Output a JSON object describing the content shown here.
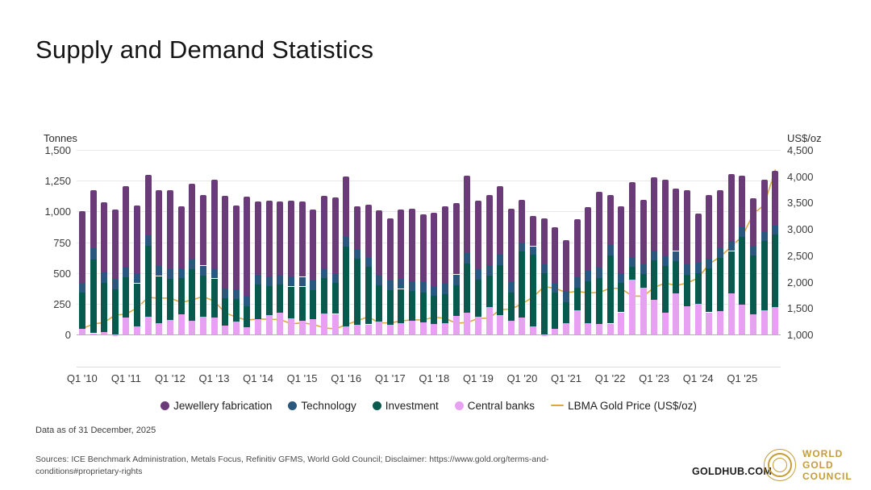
{
  "page": {
    "title": "Supply and Demand Statistics"
  },
  "footer": {
    "data_as_of": "Data as of 31 December, 2025",
    "sources": "Sources: ICE Benchmark Administration, Metals Focus, Refinitiv GFMS, World Gold Council; Disclaimer: https://www.gold.org/terms-and-conditions#proprietary-rights"
  },
  "branding": {
    "goldhub": "GOLDHUB.COM",
    "wgc_lines": {
      "0": "WORLD",
      "1": "GOLD",
      "2": "COUNCIL"
    }
  },
  "chart_data": {
    "type": "bar",
    "subtype": "stacked-bars-with-line",
    "title": "Supply and Demand Statistics",
    "x_tick_labels": [
      "Q1 '10",
      "Q1 '11",
      "Q1 '12",
      "Q1 '13",
      "Q1 '14",
      "Q1 '15",
      "Q1 '16",
      "Q1 '17",
      "Q1 '18",
      "Q1 '19",
      "Q1 '20",
      "Q1 '21",
      "Q1 '22",
      "Q1 '23",
      "Q1 '24",
      "Q1 '25"
    ],
    "quarters_per_tick": 4,
    "left_axis": {
      "title": "Tonnes",
      "ticks": [
        0,
        250,
        500,
        750,
        1000,
        1250,
        1500
      ],
      "labels": [
        "0",
        "250",
        "500",
        "750",
        "1,000",
        "1,250",
        "1,500"
      ],
      "ylim": [
        -260,
        1500
      ]
    },
    "right_axis": {
      "title": "US$/oz",
      "ticks": [
        1000,
        1500,
        2000,
        2500,
        3000,
        3500,
        4000,
        4500
      ],
      "labels": [
        "1,000",
        "1,500",
        "2,000",
        "2,500",
        "3,000",
        "3,500",
        "4,000",
        "4,500"
      ],
      "ylim": [
        1000,
        4500
      ]
    },
    "stack_order": [
      "central_banks",
      "investment",
      "technology",
      "jewellery"
    ],
    "series": [
      {
        "id": "jewellery",
        "name": "Jewellery fabrication",
        "color": "#6b3a78",
        "values": [
          580,
          477,
          573,
          560,
          654,
          550,
          494,
          611,
          638,
          503,
          611,
          575,
          725,
          749,
          682,
          808,
          595,
          613,
          596,
          620,
          612,
          575,
          590,
          621,
          495,
          356,
          426,
          531,
          504,
          565,
          587,
          550,
          596,
          632,
          577,
          631,
          562,
          573,
          556,
          596,
          347,
          243,
          370,
          450,
          419,
          477,
          520,
          615,
          410,
          544,
          610,
          526,
          597,
          619,
          507,
          607,
          404,
          517,
          472,
          543,
          414,
          388,
          423,
          442
        ]
      },
      {
        "id": "technology",
        "name": "Technology",
        "color": "#2a577d",
        "values": [
          80,
          88,
          85,
          85,
          84,
          84,
          86,
          84,
          82,
          80,
          82,
          80,
          80,
          80,
          80,
          81,
          79,
          79,
          79,
          80,
          78,
          78,
          77,
          77,
          75,
          76,
          77,
          79,
          79,
          80,
          82,
          83,
          82,
          83,
          85,
          84,
          82,
          83,
          83,
          84,
          73,
          67,
          77,
          80,
          81,
          83,
          84,
          86,
          82,
          81,
          80,
          79,
          79,
          81,
          81,
          81,
          81,
          83,
          83,
          84,
          81,
          79,
          77,
          78
        ]
      },
      {
        "id": "investment",
        "name": "Investment",
        "color": "#085a4e",
        "values": [
          295,
          600,
          395,
          370,
          330,
          350,
          575,
          380,
          335,
          295,
          420,
          335,
          320,
          225,
          185,
          170,
          282,
          235,
          230,
          257,
          278,
          235,
          290,
          250,
          650,
          535,
          470,
          295,
          285,
          280,
          240,
          245,
          225,
          240,
          255,
          400,
          300,
          255,
          410,
          230,
          540,
          585,
          495,
          295,
          170,
          180,
          340,
          375,
          555,
          240,
          105,
          110,
          320,
          380,
          260,
          258,
          250,
          355,
          430,
          345,
          551,
          477,
          560,
          590
        ]
      },
      {
        "id": "central_banks",
        "name": "Central banks",
        "color": "#e7a0f2",
        "values": [
          45,
          10,
          22,
          -15,
          137,
          66,
          145,
          95,
          115,
          162,
          112,
          145,
          135,
          71,
          103,
          61,
          124,
          158,
          175,
          133,
          112,
          127,
          168,
          167,
          65,
          78,
          82,
          105,
          77,
          90,
          111,
          97,
          87,
          90,
          148,
          175,
          146,
          224,
          156,
          110,
          135,
          65,
          -12,
          45,
          95,
          200,
          91,
          84,
          88,
          180,
          445,
          380,
          284,
          175,
          337,
          229,
          250,
          180,
          190,
          333,
          244,
          166,
          197,
          220
        ]
      }
    ],
    "line": {
      "id": "price",
      "name": "LBMA Gold Price (US$/oz)",
      "color": "#dba940",
      "axis": "right",
      "values": [
        1110,
        1197,
        1227,
        1367,
        1386,
        1506,
        1702,
        1688,
        1691,
        1609,
        1652,
        1722,
        1632,
        1415,
        1326,
        1272,
        1293,
        1288,
        1282,
        1201,
        1218,
        1192,
        1124,
        1106,
        1183,
        1260,
        1335,
        1222,
        1219,
        1257,
        1278,
        1275,
        1329,
        1306,
        1213,
        1226,
        1304,
        1309,
        1472,
        1481,
        1583,
        1711,
        1909,
        1874,
        1794,
        1816,
        1790,
        1795,
        1877,
        1871,
        1729,
        1725,
        1890,
        1976,
        1928,
        1976,
        2070,
        2338,
        2474,
        2664,
        2860,
        3280,
        3457,
        4120
      ]
    },
    "legend_order": [
      "jewellery",
      "technology",
      "investment",
      "central_banks",
      "price"
    ],
    "legend_position": "bottom-center",
    "grid": "horizontal-only"
  }
}
